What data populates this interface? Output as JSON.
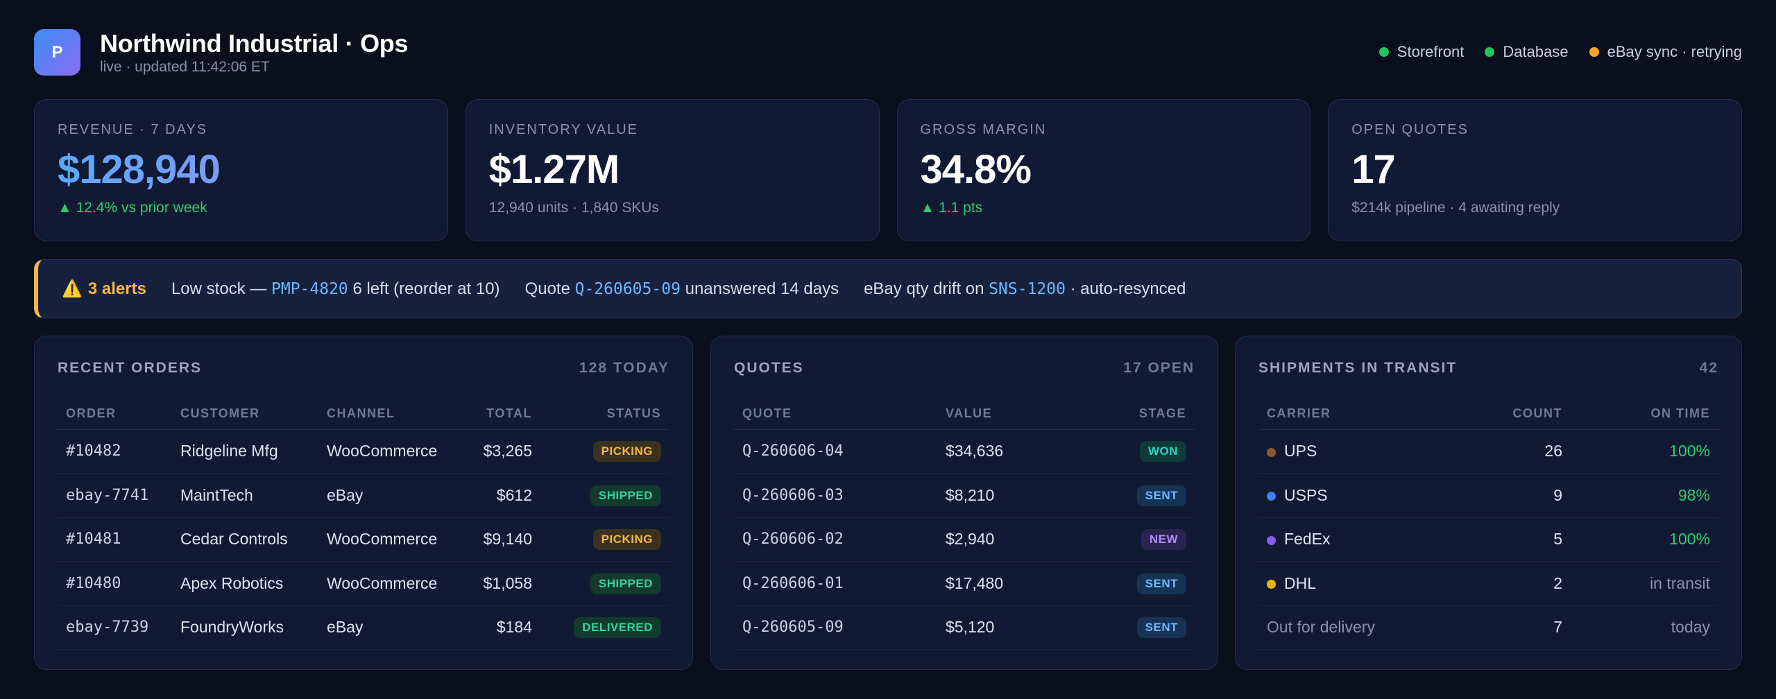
{
  "header": {
    "logo_letter": "P",
    "title": "Northwind Industrial · Ops",
    "subtitle": "live · updated 11:42:06 ET",
    "status": [
      {
        "label": "Storefront",
        "color": "#22c55e"
      },
      {
        "label": "Database",
        "color": "#22c55e"
      },
      {
        "label": "eBay sync · retrying",
        "color": "#f5a623"
      }
    ]
  },
  "kpis": [
    {
      "label": "REVENUE · 7 DAYS",
      "value": "$128,940",
      "sub": "▲ 12.4% vs prior week"
    },
    {
      "label": "INVENTORY VALUE",
      "value": "$1.27M",
      "sub": "12,940 units · 1,840 SKUs"
    },
    {
      "label": "GROSS MARGIN",
      "value": "34.8%",
      "sub": "▲ 1.1 pts"
    },
    {
      "label": "OPEN QUOTES",
      "value": "17",
      "sub": "$214k pipeline · 4 awaiting reply"
    }
  ],
  "alerts": {
    "icon": "⚠️",
    "count_label": "3 alerts",
    "items": [
      {
        "pre": "Low stock — ",
        "code": "PMP-4820",
        "post": " 6 left (reorder at 10)"
      },
      {
        "pre": "Quote ",
        "code": "Q-260605-09",
        "post": " unanswered 14 days"
      },
      {
        "pre": "eBay qty drift on ",
        "code": "SNS-1200",
        "post": " · auto-resynced"
      }
    ]
  },
  "orders": {
    "title": "RECENT ORDERS",
    "meta": "128 TODAY",
    "headers": [
      "ORDER",
      "CUSTOMER",
      "CHANNEL",
      "TOTAL",
      "STATUS"
    ],
    "rows": [
      {
        "order": "#10482",
        "customer": "Ridgeline Mfg",
        "channel": "WooCommerce",
        "total": "$3,265",
        "status": "PICKING"
      },
      {
        "order": "ebay-7741",
        "customer": "MaintTech",
        "channel": "eBay",
        "total": "$612",
        "status": "SHIPPED"
      },
      {
        "order": "#10481",
        "customer": "Cedar Controls",
        "channel": "WooCommerce",
        "total": "$9,140",
        "status": "PICKING"
      },
      {
        "order": "#10480",
        "customer": "Apex Robotics",
        "channel": "WooCommerce",
        "total": "$1,058",
        "status": "SHIPPED"
      },
      {
        "order": "ebay-7739",
        "customer": "FoundryWorks",
        "channel": "eBay",
        "total": "$184",
        "status": "DELIVERED"
      }
    ]
  },
  "quotes": {
    "title": "QUOTES",
    "meta": "17 OPEN",
    "headers": [
      "QUOTE",
      "VALUE",
      "STAGE"
    ],
    "rows": [
      {
        "quote": "Q-260606-04",
        "value": "$34,636",
        "stage": "WON"
      },
      {
        "quote": "Q-260606-03",
        "value": "$8,210",
        "stage": "SENT"
      },
      {
        "quote": "Q-260606-02",
        "value": "$2,940",
        "stage": "NEW"
      },
      {
        "quote": "Q-260606-01",
        "value": "$17,480",
        "stage": "SENT"
      },
      {
        "quote": "Q-260605-09",
        "value": "$5,120",
        "stage": "SENT"
      }
    ]
  },
  "shipments": {
    "title": "SHIPMENTS IN TRANSIT",
    "meta": "42",
    "headers": [
      "CARRIER",
      "COUNT",
      "ON TIME"
    ],
    "rows": [
      {
        "carrier": "UPS",
        "color": "#8b5a2b",
        "count": "26",
        "ontime": "100%"
      },
      {
        "carrier": "USPS",
        "color": "#3b82f6",
        "count": "9",
        "ontime": "98%"
      },
      {
        "carrier": "FedEx",
        "color": "#8b5cf6",
        "count": "5",
        "ontime": "100%"
      },
      {
        "carrier": "DHL",
        "color": "#eab308",
        "count": "2",
        "ontime": "in transit"
      },
      {
        "carrier": "Out for delivery",
        "color": "",
        "count": "7",
        "ontime": "today"
      }
    ]
  }
}
